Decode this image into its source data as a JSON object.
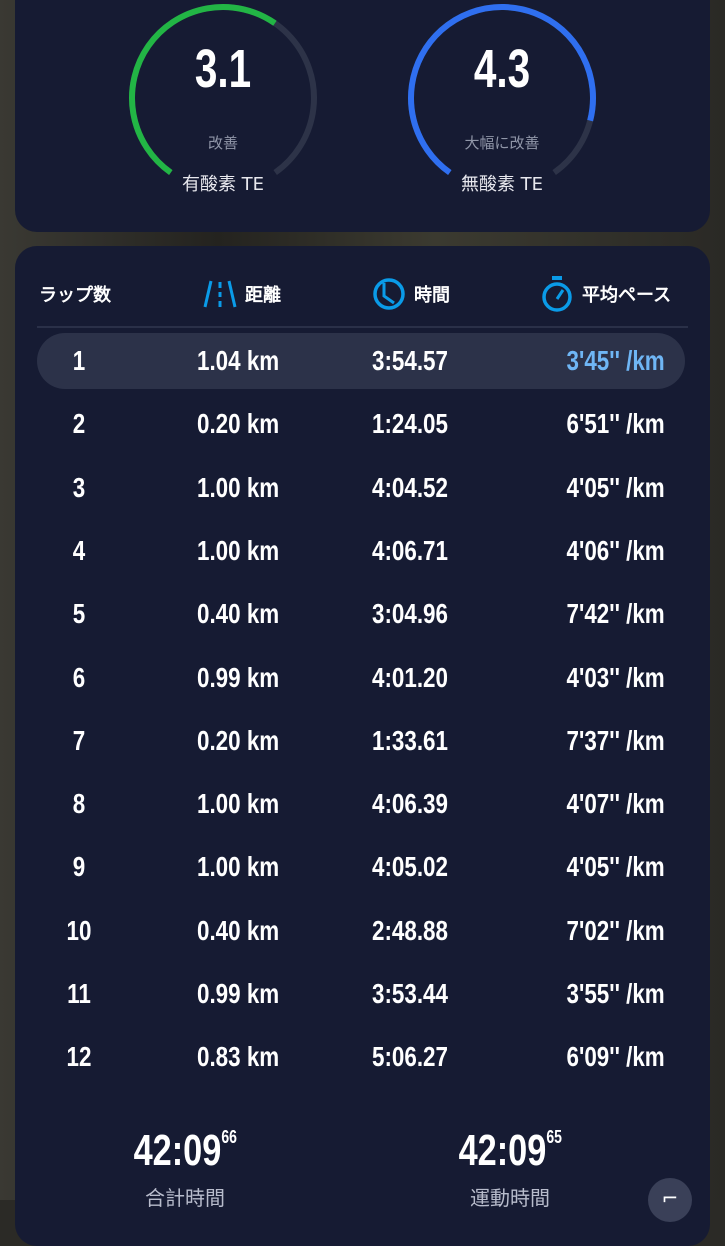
{
  "training_effect": [
    {
      "value": "3.1",
      "status": "改善",
      "label": "有酸素 TE",
      "color": "#22b545",
      "fraction": 0.62
    },
    {
      "value": "4.3",
      "status": "大幅に改善",
      "label": "無酸素 TE",
      "color": "#2f6ff0",
      "fraction": 0.86
    }
  ],
  "laps_table": {
    "headers": {
      "lap": "ラップ数",
      "distance": "距離",
      "time": "時間",
      "pace": "平均ペース"
    },
    "icons": {
      "distance": "road-icon",
      "time": "clock-icon",
      "pace": "stopwatch-icon"
    },
    "accent": "#0a9be8",
    "rows": [
      {
        "lap": "1",
        "distance": "1.04 km",
        "time": "3:54.57",
        "pace": "3'45'' /km"
      },
      {
        "lap": "2",
        "distance": "0.20 km",
        "time": "1:24.05",
        "pace": "6'51'' /km"
      },
      {
        "lap": "3",
        "distance": "1.00 km",
        "time": "4:04.52",
        "pace": "4'05'' /km"
      },
      {
        "lap": "4",
        "distance": "1.00 km",
        "time": "4:06.71",
        "pace": "4'06'' /km"
      },
      {
        "lap": "5",
        "distance": "0.40 km",
        "time": "3:04.96",
        "pace": "7'42'' /km"
      },
      {
        "lap": "6",
        "distance": "0.99 km",
        "time": "4:01.20",
        "pace": "4'03'' /km"
      },
      {
        "lap": "7",
        "distance": "0.20 km",
        "time": "1:33.61",
        "pace": "7'37'' /km"
      },
      {
        "lap": "8",
        "distance": "1.00 km",
        "time": "4:06.39",
        "pace": "4'07'' /km"
      },
      {
        "lap": "9",
        "distance": "1.00 km",
        "time": "4:05.02",
        "pace": "4'05'' /km"
      },
      {
        "lap": "10",
        "distance": "0.40 km",
        "time": "2:48.88",
        "pace": "7'02'' /km"
      },
      {
        "lap": "11",
        "distance": "0.99 km",
        "time": "3:53.44",
        "pace": "3'55'' /km"
      },
      {
        "lap": "12",
        "distance": "0.83 km",
        "time": "5:06.27",
        "pace": "6'09'' /km"
      }
    ]
  },
  "totals": [
    {
      "main": "42:09",
      "fraction": "66",
      "label": "合計時間"
    },
    {
      "main": "42:09",
      "fraction": "65",
      "label": "運動時間"
    }
  ]
}
